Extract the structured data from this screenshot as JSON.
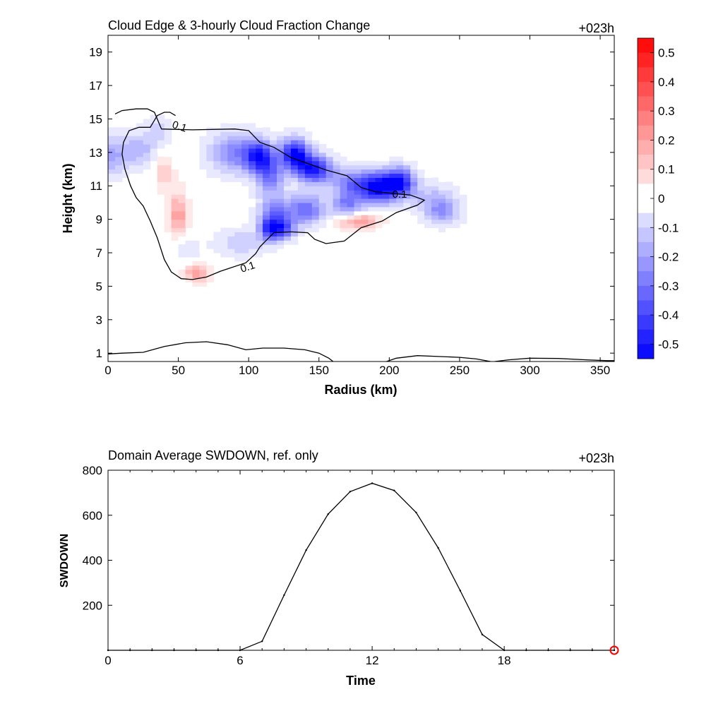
{
  "chart_data": [
    {
      "type": "heatmap",
      "title": "Cloud Edge & 3-hourly Cloud Fraction Change",
      "time_label": "+023h",
      "xlabel": "Radius (km)",
      "ylabel": "Height (km)",
      "xlim": [
        0,
        360
      ],
      "ylim": [
        0.5,
        20
      ],
      "xticks": [
        0,
        50,
        100,
        150,
        200,
        250,
        300,
        350
      ],
      "yticks": [
        1,
        3,
        5,
        7,
        9,
        11,
        13,
        15,
        17,
        19
      ],
      "colorbar": {
        "ticks": [
          "0.5",
          "0.4",
          "0.3",
          "0.2",
          "0.1",
          "0",
          "-0.1",
          "-0.2",
          "-0.3",
          "-0.4",
          "-0.5"
        ],
        "range": [
          -0.55,
          0.55
        ],
        "max_color": "#ff0000",
        "min_color": "#0000ff",
        "mid_color": "#ffffff"
      },
      "contour_level": "0.1",
      "contour_labels": [
        "0.1",
        "0.1",
        "0.1"
      ],
      "contours": [
        [
          [
            5,
            15.3
          ],
          [
            10,
            15.5
          ],
          [
            20,
            15.6
          ],
          [
            28,
            15.6
          ],
          [
            33,
            15.4
          ],
          [
            38,
            14.4
          ],
          [
            60,
            14.35
          ],
          [
            90,
            14.4
          ],
          [
            100,
            14.3
          ],
          [
            108,
            13.6
          ],
          [
            118,
            13.3
          ],
          [
            130,
            12.7
          ],
          [
            140,
            12.4
          ],
          [
            155,
            11.95
          ],
          [
            170,
            11.6
          ],
          [
            180,
            10.9
          ],
          [
            190,
            10.65
          ],
          [
            215,
            10.45
          ],
          [
            225,
            10.15
          ],
          [
            220,
            9.85
          ],
          [
            205,
            9.4
          ],
          [
            195,
            8.9
          ],
          [
            180,
            8.5
          ],
          [
            168,
            7.7
          ],
          [
            155,
            7.55
          ],
          [
            147,
            7.8
          ],
          [
            142,
            8.2
          ],
          [
            130,
            8.25
          ],
          [
            118,
            8.2
          ],
          [
            112,
            7.7
          ],
          [
            108,
            7.35
          ],
          [
            105,
            6.95
          ],
          [
            98,
            6.4
          ],
          [
            80,
            5.9
          ],
          [
            70,
            5.55
          ],
          [
            60,
            5.4
          ],
          [
            52,
            5.45
          ],
          [
            45,
            5.85
          ],
          [
            40,
            6.6
          ],
          [
            35,
            7.9
          ],
          [
            30,
            8.9
          ],
          [
            25,
            9.8
          ],
          [
            20,
            10.3
          ],
          [
            16,
            11.0
          ],
          [
            12,
            12.0
          ],
          [
            10,
            12.9
          ],
          [
            11,
            13.6
          ],
          [
            15,
            14.3
          ],
          [
            22,
            14.5
          ],
          [
            30,
            14.5
          ],
          [
            35,
            15.2
          ],
          [
            40,
            15.4
          ],
          [
            44,
            15.4
          ],
          [
            48,
            15.2
          ]
        ],
        [
          [
            0,
            0.95
          ],
          [
            10,
            1.0
          ],
          [
            25,
            1.05
          ],
          [
            40,
            1.4
          ],
          [
            55,
            1.62
          ],
          [
            70,
            1.68
          ],
          [
            85,
            1.5
          ],
          [
            98,
            1.2
          ],
          [
            110,
            1.3
          ],
          [
            125,
            1.3
          ],
          [
            140,
            1.2
          ],
          [
            150,
            1.0
          ],
          [
            157,
            0.7
          ],
          [
            160,
            0.5
          ]
        ],
        [
          [
            198,
            0.5
          ],
          [
            205,
            0.7
          ],
          [
            220,
            0.85
          ],
          [
            235,
            0.8
          ],
          [
            250,
            0.75
          ],
          [
            262,
            0.65
          ],
          [
            272,
            0.5
          ]
        ],
        [
          [
            275,
            0.5
          ],
          [
            285,
            0.6
          ],
          [
            300,
            0.7
          ],
          [
            320,
            0.68
          ],
          [
            340,
            0.6
          ],
          [
            355,
            0.55
          ],
          [
            360,
            0.55
          ]
        ]
      ],
      "values": [
        [
          2,
          12.8,
          -0.18,
          12,
          1.1
        ],
        [
          22,
          13.2,
          -0.15,
          12,
          1.0
        ],
        [
          36,
          14.3,
          -0.1,
          8,
          0.8
        ],
        [
          90,
          13.0,
          -0.25,
          18,
          1.2
        ],
        [
          107,
          12.8,
          -0.4,
          10,
          0.9
        ],
        [
          115,
          11.7,
          -0.3,
          10,
          1.2
        ],
        [
          133,
          12.9,
          -0.55,
          10,
          0.9
        ],
        [
          147,
          12.0,
          -0.5,
          12,
          0.8
        ],
        [
          170,
          11.2,
          -0.2,
          12,
          0.9
        ],
        [
          192,
          10.95,
          -0.58,
          16,
          0.9
        ],
        [
          208,
          11.3,
          -0.4,
          10,
          0.8
        ],
        [
          238,
          9.5,
          -0.2,
          12,
          0.8
        ],
        [
          230,
          10.3,
          -0.12,
          16,
          0.9
        ],
        [
          140,
          9.6,
          -0.32,
          14,
          0.9
        ],
        [
          118,
          9.2,
          -0.3,
          10,
          1.0
        ],
        [
          115,
          8.4,
          -0.35,
          7,
          0.6
        ],
        [
          125,
          8.4,
          -0.3,
          8,
          0.6
        ],
        [
          170,
          9.9,
          -0.25,
          10,
          0.7
        ],
        [
          95,
          7.6,
          -0.12,
          18,
          0.8
        ],
        [
          55,
          7.3,
          -0.06,
          10,
          0.8
        ],
        [
          40,
          11.8,
          0.12,
          6,
          1.0
        ],
        [
          50,
          9.3,
          0.22,
          6,
          1.3
        ],
        [
          63,
          5.8,
          0.22,
          8,
          0.5
        ],
        [
          178,
          8.9,
          0.22,
          14,
          0.45
        ]
      ]
    },
    {
      "type": "line",
      "title": "Domain Average SWDOWN, ref. only",
      "time_label": "+023h",
      "xlabel": "Time",
      "ylabel": "SWDOWN",
      "xlim": [
        0,
        23
      ],
      "ylim": [
        0,
        800
      ],
      "xticks": [
        0,
        6,
        12,
        18
      ],
      "yticks": [
        200,
        400,
        600,
        800
      ],
      "line_color": "#000000",
      "marker_color": "#ff0000",
      "x": [
        0,
        1,
        2,
        3,
        4,
        5,
        6,
        7,
        8,
        9,
        10,
        11,
        12,
        13,
        14,
        15,
        16,
        17,
        18,
        19,
        20,
        21,
        22,
        23
      ],
      "values": [
        0,
        0,
        0,
        0,
        0,
        0,
        0,
        40,
        245,
        445,
        605,
        705,
        742,
        710,
        612,
        455,
        265,
        70,
        0,
        0,
        0,
        0,
        0,
        0
      ],
      "current_x": 23
    }
  ]
}
